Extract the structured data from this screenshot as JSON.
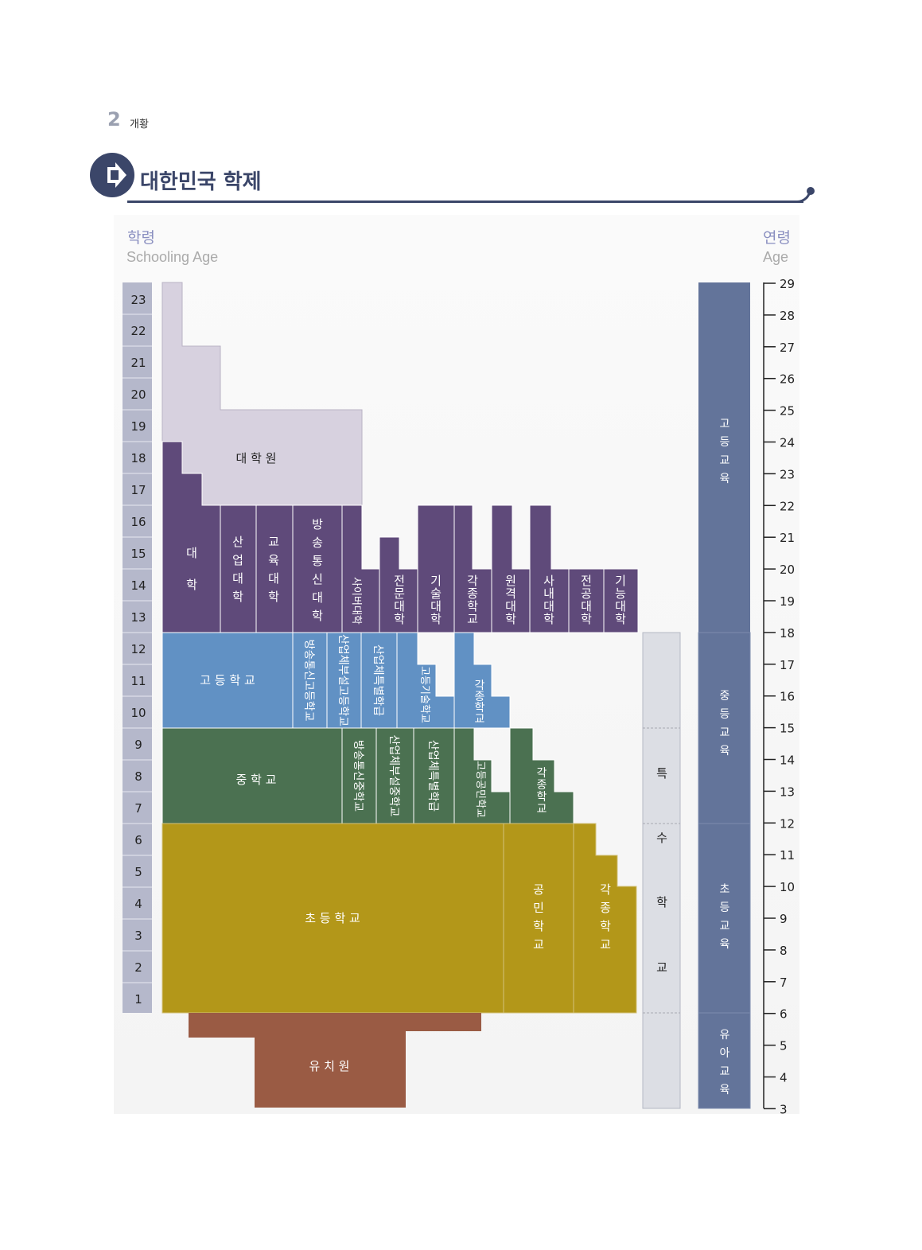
{
  "header": {
    "page_number": "2",
    "section": "개황",
    "title": "대한민국 학제"
  },
  "left_axis": {
    "title_ko": "학령",
    "title_en": "Schooling Age",
    "ticks": [
      "23",
      "22",
      "21",
      "20",
      "19",
      "18",
      "17",
      "16",
      "15",
      "14",
      "13",
      "12",
      "11",
      "10",
      "9",
      "8",
      "7",
      "6",
      "5",
      "4",
      "3",
      "2",
      "1"
    ]
  },
  "right_axis": {
    "title_ko": "연령",
    "title_en": "Age",
    "ticks": [
      "29",
      "28",
      "27",
      "26",
      "25",
      "24",
      "23",
      "22",
      "21",
      "20",
      "19",
      "18",
      "17",
      "16",
      "15",
      "14",
      "13",
      "12",
      "11",
      "10",
      "9",
      "8",
      "7",
      "6",
      "5",
      "4",
      "3"
    ]
  },
  "colors": {
    "graduate": "#d7d1df",
    "university": "#5f4a7a",
    "high_school": "#6191c4",
    "middle_school": "#4b7151",
    "elementary": "#b39719",
    "kindergarten": "#9a5b44",
    "special": "#dcdee4",
    "education_levels": "#63749a",
    "schooling_age_box": "#b5b8cb"
  },
  "blocks": {
    "graduate_school": "대 학 원",
    "university": [
      "대",
      "학"
    ],
    "industrial_univ": [
      "산",
      "업",
      "대",
      "학"
    ],
    "education_univ": [
      "교",
      "육",
      "대",
      "학"
    ],
    "broadcast_univ": [
      "방",
      "송",
      "통",
      "신",
      "대",
      "학"
    ],
    "cyber_univ": "사이버대학",
    "junior_college": [
      "전",
      "문",
      "대",
      "학"
    ],
    "technical_college": [
      "기",
      "술",
      "대",
      "학"
    ],
    "misc_college": [
      "각",
      "종",
      "학",
      "교"
    ],
    "remote_univ": [
      "원",
      "격",
      "대",
      "학"
    ],
    "corporate_univ": [
      "사",
      "내",
      "대",
      "학"
    ],
    "major_univ": [
      "전",
      "공",
      "대",
      "학"
    ],
    "polytech_univ": [
      "기",
      "능",
      "대",
      "학"
    ],
    "high_school": "고 등 학 교",
    "broadcast_high": "방송통신고등학교",
    "industrial_high": "산업체부설고등학교",
    "industrial_special_class_high": "산업체특별학급",
    "civic_tech_high": "고등기술학교",
    "misc_high": [
      "각",
      "종",
      "학",
      "교"
    ],
    "middle_school": "중 학 교",
    "broadcast_middle": "방송통신중학교",
    "industrial_middle": "산업체부설중학교",
    "industrial_special_class_middle": "산업체특별학급",
    "civic_high": "고등공민학교",
    "misc_middle": [
      "각",
      "종",
      "학",
      "교"
    ],
    "elementary": "초 등 학 교",
    "civic_school": [
      "공",
      "민",
      "학",
      "교"
    ],
    "misc_elementary": [
      "각",
      "종",
      "학",
      "교"
    ],
    "kindergarten": "유 치 원",
    "special_school": [
      "특",
      "수",
      "학",
      "교"
    ]
  },
  "education_levels": [
    [
      "고",
      "등",
      "교",
      "육"
    ],
    [
      "중",
      "등",
      "교",
      "육"
    ],
    [
      "초",
      "등",
      "교",
      "육"
    ],
    [
      "유",
      "아",
      "교",
      "육"
    ]
  ]
}
